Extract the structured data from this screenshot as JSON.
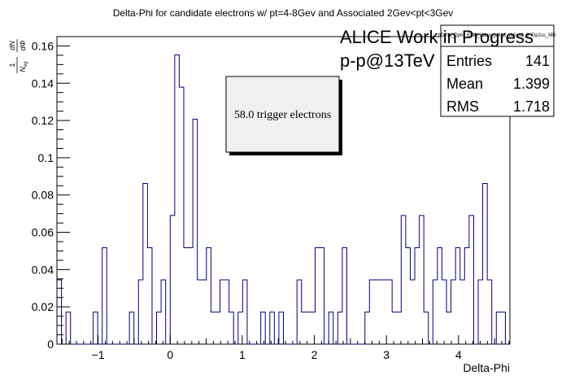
{
  "chart_data": {
    "type": "bar",
    "title": "Delta-Phi for candidate electrons w/ pt=4-8Gev and Associated 2Gev<pt<3Gev",
    "xlabel": "Delta-Phi",
    "ylabel": "1/N_eg dN/dΦ",
    "ylabel_parts": {
      "num": "1",
      "den": "N",
      "sub": "eg",
      "frac_num": "dN",
      "frac_den": "dΦ"
    },
    "xlim": [
      -1.5708,
      4.7124
    ],
    "ylim": [
      0,
      0.165
    ],
    "x_ticks": [
      "−1",
      "0",
      "1",
      "2",
      "3",
      "4"
    ],
    "x_tick_values": [
      -1,
      0,
      1,
      2,
      3,
      4
    ],
    "y_ticks": [
      "0",
      "0.02",
      "0.04",
      "0.06",
      "0.08",
      "0.1",
      "0.12",
      "0.14",
      "0.16"
    ],
    "y_tick_values": [
      0,
      0.02,
      0.04,
      0.06,
      0.08,
      0.1,
      0.12,
      0.14,
      0.16
    ],
    "bins": 100,
    "values": [
      0.0345,
      0,
      0.0172,
      0,
      0,
      0,
      0,
      0,
      0.0172,
      0,
      0.0517,
      0,
      0,
      0,
      0,
      0,
      0.0172,
      0,
      0.0345,
      0.0862,
      0.0517,
      0,
      0.0172,
      0.0345,
      0,
      0.069,
      0.1552,
      0.1379,
      0.0517,
      0.0517,
      0.1207,
      0.0345,
      0.0345,
      0.0517,
      0.0172,
      0.0172,
      0.0345,
      0.0345,
      0.0172,
      0,
      0.0172,
      0.0345,
      0,
      0,
      0,
      0.0172,
      0,
      0.0172,
      0,
      0.0172,
      0,
      0,
      0,
      0.0345,
      0.0172,
      0.0172,
      0.0172,
      0.0517,
      0.0517,
      0,
      0.0172,
      0,
      0.0172,
      0.0517,
      0,
      0,
      0,
      0,
      0.0172,
      0.0345,
      0.0345,
      0.0345,
      0.0345,
      0.0345,
      0.0172,
      0.0172,
      0.069,
      0.0517,
      0.0345,
      0.0517,
      0.069,
      0.0172,
      0,
      0.0345,
      0.0517,
      0.0345,
      0.0172,
      0.0345,
      0.0517,
      0.0345,
      0.0517,
      0.069,
      0,
      0.0345,
      0.0862,
      0.0345,
      0,
      0.0172,
      0.0172,
      0
    ],
    "grid": false,
    "legend": "none"
  },
  "overlay": {
    "line1": "ALICE Work in Progress",
    "line2": "p-p@13TeV",
    "note": "58.0 trigger electrons"
  },
  "stats": {
    "title": "hDPhi_Dphi_Efd0_Kaon_pt4_8_ptAss2_3_Dp2ss_MB",
    "entries_label": "Entries",
    "entries_value": "141",
    "mean_label": "Mean",
    "mean_value": "1.399",
    "rms_label": "RMS",
    "rms_value": "1.718"
  },
  "colors": {
    "histogram": "#000080",
    "box_fill": "#f0f0f0",
    "frame": "#000000"
  }
}
